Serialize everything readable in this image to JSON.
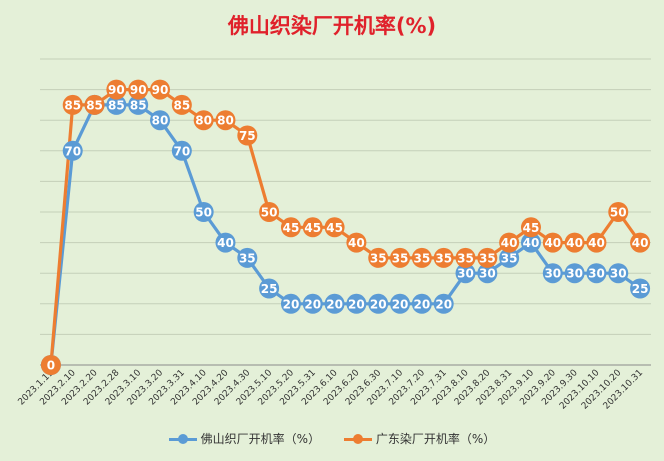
{
  "chart_data": {
    "type": "line",
    "title": "佛山织染厂开机率(%)",
    "xlabel": "",
    "ylabel": "",
    "ylim": [
      0,
      100
    ],
    "grid": true,
    "legend_position": "bottom",
    "categories": [
      "2023.1.15",
      "2023.2.10",
      "2023.2.20",
      "2023.2.28",
      "2023.3.10",
      "2023.3.20",
      "2023.3.31",
      "2023.4.10",
      "2023.4.20",
      "2023.4.30",
      "2023.5.10",
      "2023.5.20",
      "2023.5.31",
      "2023.6.10",
      "2023.6.20",
      "2023.6.30",
      "2023.7.10",
      "2023.7.20",
      "2023.7.31",
      "2023.8.10",
      "2023.8.20",
      "2023.8.31",
      "2023.9.10",
      "2023.9.20",
      "2023.9.30",
      "2023.10.10",
      "2023.10.20",
      "2023.10.31"
    ],
    "series": [
      {
        "name": "佛山织厂开机率（%）",
        "color": "#5b9bd5",
        "values": [
          0,
          70,
          85,
          85,
          85,
          80,
          70,
          50,
          40,
          35,
          25,
          20,
          20,
          20,
          20,
          20,
          20,
          20,
          20,
          30,
          30,
          35,
          40,
          30,
          30,
          30,
          30,
          25
        ]
      },
      {
        "name": "广东染厂开机率（%）",
        "color": "#ed7d31",
        "values": [
          0,
          85,
          85,
          90,
          90,
          90,
          85,
          80,
          80,
          75,
          50,
          45,
          45,
          45,
          40,
          35,
          35,
          35,
          35,
          35,
          35,
          40,
          45,
          40,
          40,
          40,
          50,
          40
        ]
      }
    ]
  }
}
